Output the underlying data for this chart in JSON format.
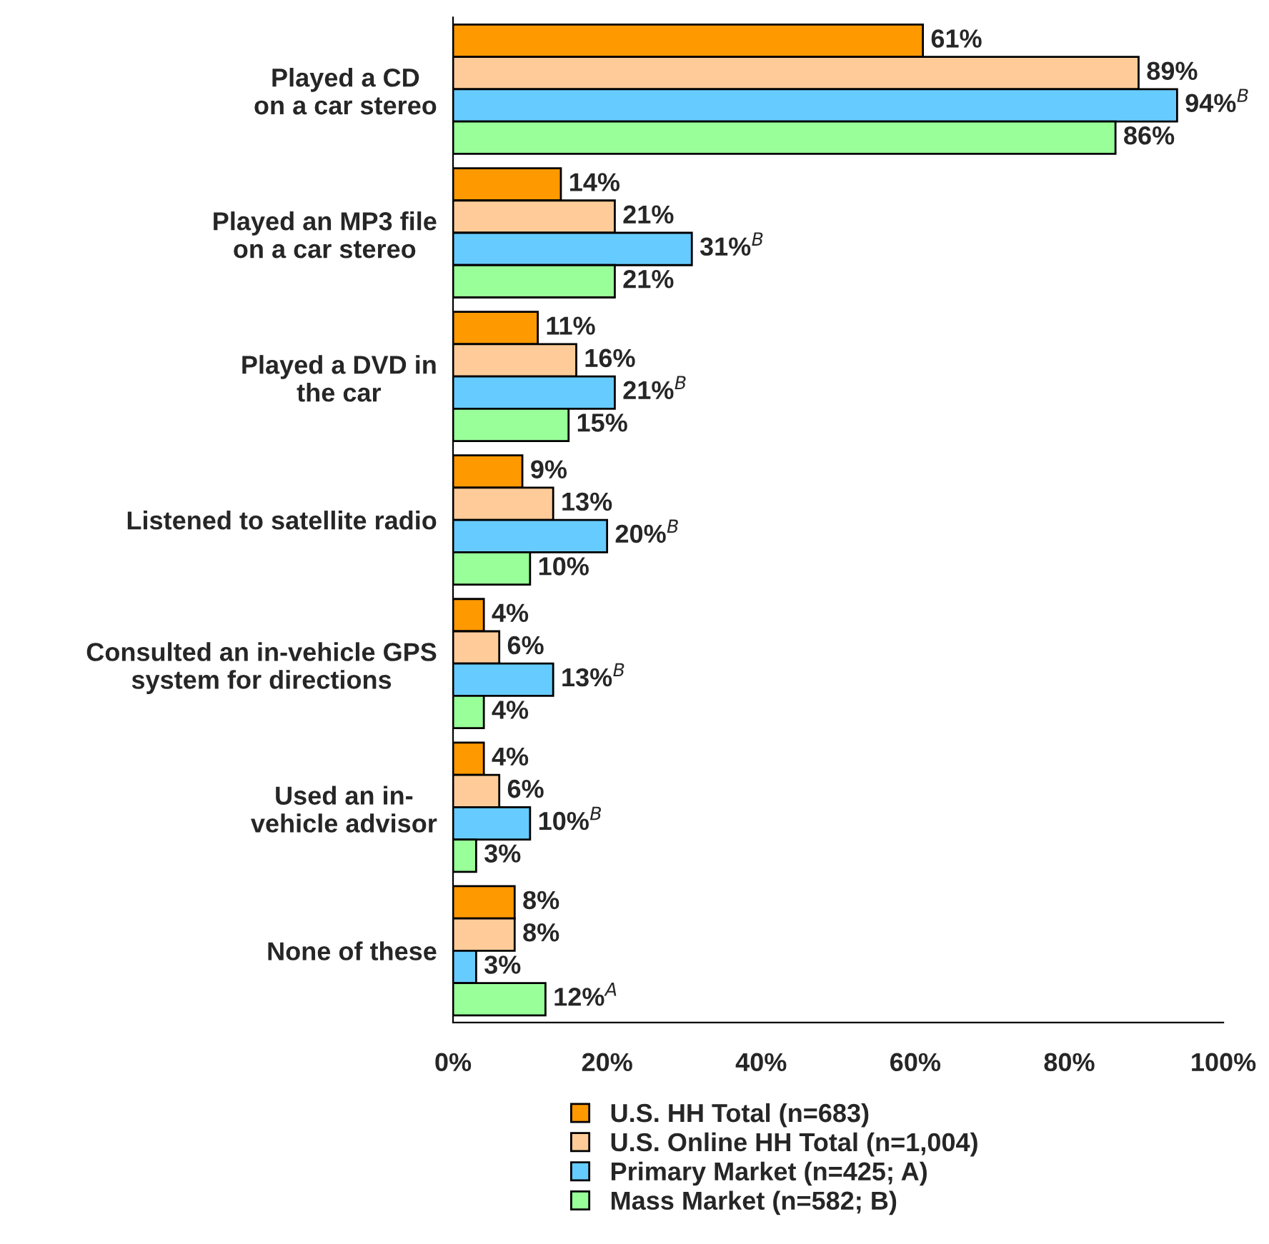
{
  "chart_data": {
    "type": "bar",
    "orientation": "horizontal",
    "categories": [
      "Played a CD\non a car stereo",
      "Played an MP3 file\non a car stereo",
      "Played a DVD in\nthe car",
      "Listened to satellite radio",
      "Consulted an in-vehicle GPS\nsystem for directions",
      "Used an in-\nvehicle advisor",
      "None of these"
    ],
    "series": [
      {
        "name": "U.S. HH Total (n=683)",
        "color": "#ff9900",
        "values": [
          61,
          14,
          11,
          9,
          4,
          4,
          8
        ],
        "value_labels": [
          "61%",
          "14%",
          "11%",
          "9%",
          "4%",
          "4%",
          "8%"
        ]
      },
      {
        "name": "U.S. Online HH Total (n=1,004)",
        "color": "#ffcc99",
        "values": [
          89,
          21,
          16,
          13,
          6,
          6,
          8
        ],
        "value_labels": [
          "89%",
          "21%",
          "16%",
          "13%",
          "6%",
          "6%",
          "8%"
        ]
      },
      {
        "name": "Primary Market (n=425; A)",
        "color": "#66ccff",
        "values": [
          94,
          31,
          21,
          20,
          13,
          10,
          3
        ],
        "value_labels": [
          "94%$^{B}$",
          "31%$^{B}$",
          "21%$^{B}$",
          "20%$^{B}$",
          "13%$^{B}$",
          "10%$^{B}$",
          "3%"
        ]
      },
      {
        "name": "Mass Market (n=582; B)",
        "color": "#99ff99",
        "values": [
          86,
          21,
          15,
          10,
          4,
          3,
          12
        ],
        "value_labels": [
          "86%",
          "21%",
          "15%",
          "10%",
          "4%",
          "3%",
          "12%$^{A}$"
        ]
      }
    ],
    "xlim": [
      0,
      100
    ],
    "xticks": [
      {
        "value": 0,
        "label": "0%"
      },
      {
        "value": 20,
        "label": "20%"
      },
      {
        "value": 40,
        "label": "40%"
      },
      {
        "value": 60,
        "label": "60%"
      },
      {
        "value": 80,
        "label": "80%"
      },
      {
        "value": 100,
        "label": "100%"
      }
    ],
    "grid": false,
    "legend": "bottom"
  }
}
